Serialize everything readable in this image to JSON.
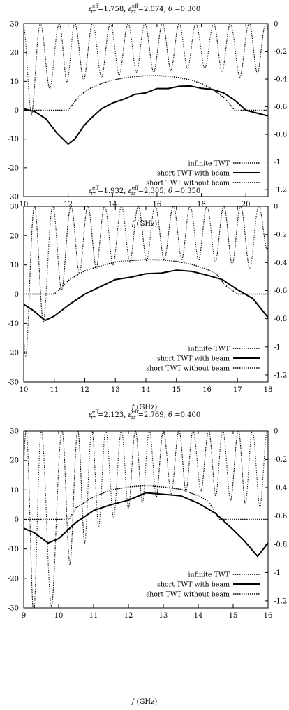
{
  "chart_data": [
    {
      "type": "line",
      "title": "ε_rr^eff =1.758, ε_zz^eff =2.074, θ =0.300",
      "title_parts": {
        "eps_rr": "1.758",
        "eps_zz": "2.074",
        "theta": "0.300"
      },
      "xlabel": "f (GHz)",
      "ylabel": "",
      "y2label": "",
      "xlim": [
        10,
        21
      ],
      "ylim": [
        -30,
        30
      ],
      "y2lim": [
        -1.25,
        0
      ],
      "xticks": [
        10,
        12,
        14,
        16,
        18,
        20
      ],
      "yticks": [
        -30,
        -20,
        -10,
        0,
        10,
        20,
        30
      ],
      "y2ticks": [
        0,
        -0.2,
        -0.4,
        -0.6,
        -0.8,
        -1,
        -1.2
      ],
      "grid": false,
      "legend_position": "bottom-right",
      "series": [
        {
          "name": "infinite TWT",
          "axis": "left",
          "style": "dotted",
          "x": [
            10,
            12,
            12.5,
            13,
            13.5,
            14,
            14.5,
            15,
            15.5,
            16,
            16.5,
            17,
            17.5,
            18,
            18.5,
            19,
            19.5,
            20,
            21
          ],
          "y": [
            0,
            0,
            5,
            7.6,
            9.3,
            10.4,
            11.2,
            11.7,
            12,
            12,
            11.8,
            11.3,
            10.5,
            9.3,
            7.2,
            4.5,
            0,
            0,
            0
          ]
        },
        {
          "name": "short TWT with beam",
          "axis": "left",
          "style": "solid",
          "x": [
            10,
            10.5,
            11,
            11.5,
            12,
            12.3,
            12.7,
            13,
            13.5,
            14,
            14.5,
            15,
            15.5,
            16,
            16.5,
            17,
            17.5,
            18,
            18.5,
            19,
            19.5,
            20,
            21
          ],
          "y": [
            0.5,
            -0.5,
            -3,
            -8,
            -11.8,
            -10,
            -5.5,
            -3,
            0.5,
            2.5,
            3.8,
            5.5,
            6,
            7.5,
            7.5,
            8.3,
            8.4,
            7.6,
            7.2,
            6,
            3.5,
            0,
            -2
          ]
        },
        {
          "name": "short TWT without beam",
          "axis": "right",
          "style": "dotted",
          "description_type": "oscillating",
          "x_range": [
            10,
            21
          ],
          "peaks": [
            10.75,
            11.6,
            12.3,
            13.1,
            13.9,
            14.7,
            15.45,
            16.25,
            17.0,
            17.75,
            18.55,
            19.3,
            20.15,
            20.9
          ],
          "envelope_min": [
            [
              10,
              -0.75
            ],
            [
              11,
              -0.48
            ],
            [
              12,
              -0.42
            ],
            [
              13,
              -0.4
            ],
            [
              14,
              -0.38
            ],
            [
              15,
              -0.35
            ],
            [
              16,
              -0.35
            ],
            [
              17,
              -0.33
            ],
            [
              18,
              -0.32
            ],
            [
              19,
              -0.35
            ],
            [
              20,
              -0.4
            ],
            [
              21,
              -0.32
            ]
          ],
          "envelope_max": 0
        }
      ]
    },
    {
      "type": "line",
      "title": "ε_rr^eff =1.932, ε_zz^eff =2.385, θ =0.350",
      "title_parts": {
        "eps_rr": "1.932",
        "eps_zz": "2.385",
        "theta": "0.350"
      },
      "xlabel": "f (GHz)",
      "ylabel": "",
      "y2label": "",
      "xlim": [
        10,
        18
      ],
      "ylim": [
        -30,
        30
      ],
      "y2lim": [
        -1.25,
        0
      ],
      "xticks": [
        10,
        11,
        12,
        13,
        14,
        15,
        16,
        17,
        18
      ],
      "yticks": [
        -30,
        -20,
        -10,
        0,
        10,
        20,
        30
      ],
      "y2ticks": [
        0,
        -0.2,
        -0.4,
        -0.6,
        -0.8,
        -1,
        -1.2
      ],
      "grid": false,
      "legend_position": "bottom-right",
      "series": [
        {
          "name": "infinite TWT",
          "axis": "left",
          "style": "dotted",
          "x": [
            10,
            11,
            11.3,
            11.5,
            12,
            12.5,
            13,
            13.5,
            14,
            14.5,
            15,
            15.5,
            16,
            16.3,
            16.6,
            17,
            18
          ],
          "y": [
            0,
            0,
            3,
            5,
            8,
            9.6,
            11,
            11.5,
            11.8,
            11.7,
            11.2,
            10.2,
            8.5,
            7,
            3,
            0,
            0
          ]
        },
        {
          "name": "short TWT with beam",
          "axis": "left",
          "style": "solid",
          "x": [
            10,
            10.3,
            10.7,
            11,
            11.5,
            12,
            12.5,
            13,
            13.5,
            14,
            14.5,
            15,
            15.5,
            16,
            16.5,
            17,
            17.5,
            18
          ],
          "y": [
            -3.5,
            -5.5,
            -9,
            -7.5,
            -3.5,
            0,
            2.5,
            5,
            5.8,
            7,
            7.2,
            8.2,
            7.8,
            6.5,
            5,
            1.5,
            -1.5,
            -8
          ]
        },
        {
          "name": "short TWT without beam",
          "axis": "right",
          "style": "dotted",
          "description_type": "oscillating",
          "x_range": [
            10,
            18
          ],
          "peaks": [
            10.35,
            10.95,
            11.55,
            12.1,
            12.65,
            13.2,
            13.75,
            14.3,
            14.9,
            15.45,
            16.0,
            16.55,
            17.1,
            17.7
          ],
          "envelope_min": [
            [
              10,
              -1.1
            ],
            [
              10.7,
              -0.8
            ],
            [
              11.5,
              -0.5
            ],
            [
              12.5,
              -0.43
            ],
            [
              13.5,
              -0.4
            ],
            [
              14.5,
              -0.38
            ],
            [
              15.5,
              -0.38
            ],
            [
              16.5,
              -0.4
            ],
            [
              17.5,
              -0.45
            ],
            [
              18,
              -0.3
            ]
          ],
          "envelope_max": 0
        }
      ]
    },
    {
      "type": "line",
      "title": "ε_rr^eff =2.123, ε_zz^eff =2.769, θ =0.400",
      "title_parts": {
        "eps_rr": "2.123",
        "eps_zz": "2.769",
        "theta": "0.400"
      },
      "xlabel": "f (GHz)",
      "ylabel": "",
      "y2label": "",
      "xlim": [
        9,
        16
      ],
      "ylim": [
        -30,
        30
      ],
      "y2lim": [
        -1.25,
        0
      ],
      "xticks": [
        9,
        10,
        11,
        12,
        13,
        14,
        15,
        16
      ],
      "yticks": [
        -30,
        -20,
        -10,
        0,
        10,
        20,
        30
      ],
      "y2ticks": [
        0,
        -0.2,
        -0.4,
        -0.6,
        -0.8,
        -1,
        -1.2
      ],
      "grid": false,
      "legend_position": "bottom-right",
      "series": [
        {
          "name": "infinite TWT",
          "axis": "left",
          "style": "dotted",
          "x": [
            9,
            10.3,
            10.5,
            11,
            11.5,
            12,
            12.5,
            13,
            13.5,
            14,
            14.3,
            14.5,
            14.6,
            16
          ],
          "y": [
            0,
            0,
            4,
            7.6,
            10,
            11,
            11.5,
            11,
            10.2,
            8,
            6,
            2,
            0,
            0
          ]
        },
        {
          "name": "short TWT with beam",
          "axis": "left",
          "style": "solid",
          "x": [
            9,
            9.3,
            9.7,
            10,
            10.5,
            11,
            11.5,
            12,
            12.5,
            13,
            13.5,
            14,
            14.5,
            15,
            15.3,
            15.7,
            16
          ],
          "y": [
            -3,
            -4.5,
            -8,
            -6.5,
            -1,
            3,
            5,
            6.5,
            9,
            8.5,
            8,
            5.5,
            2,
            -3.5,
            -7,
            -12.5,
            -8
          ]
        },
        {
          "name": "short TWT without beam",
          "axis": "right",
          "style": "dotted",
          "description_type": "oscillating",
          "x_range": [
            9,
            16
          ],
          "peaks": [
            9.5,
            10.1,
            10.55,
            10.95,
            11.35,
            11.8,
            12.2,
            12.6,
            13.0,
            13.45,
            13.85,
            14.3,
            14.7,
            15.15,
            15.55
          ],
          "envelope_min": [
            [
              9,
              -1.3
            ],
            [
              9.7,
              -1.3
            ],
            [
              10.3,
              -0.95
            ],
            [
              11,
              -0.7
            ],
            [
              12,
              -0.55
            ],
            [
              13,
              -0.45
            ],
            [
              14,
              -0.42
            ],
            [
              15,
              -0.5
            ],
            [
              16,
              -0.55
            ]
          ],
          "envelope_max": 0
        }
      ]
    }
  ]
}
